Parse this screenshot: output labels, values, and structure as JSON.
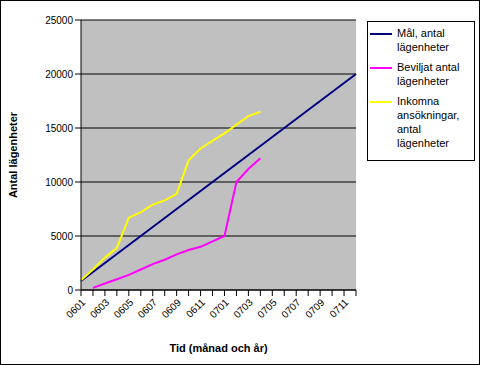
{
  "chart_data": {
    "type": "line",
    "x_label": "Tid (månad och år)",
    "y_label": "Antal lägenheter",
    "categories": [
      "0601",
      null,
      "0603",
      null,
      "0605",
      null,
      "0607",
      null,
      "0609",
      null,
      "0611",
      null,
      "0701",
      null,
      "0703",
      null,
      "0705",
      null,
      "0707",
      null,
      "0709",
      null,
      "0711",
      null
    ],
    "series": [
      {
        "name": "Mål, antal lägenheter",
        "color": "#000080",
        "values": [
          833,
          1667,
          2500,
          3333,
          4167,
          5000,
          5833,
          6667,
          7500,
          8333,
          9167,
          10000,
          10833,
          11667,
          12500,
          13333,
          14167,
          15000,
          15833,
          16667,
          17500,
          18333,
          19167,
          20000
        ]
      },
      {
        "name": "Beviljat antal lägenheter",
        "color": "#ff00ff",
        "values": [
          null,
          200,
          600,
          1000,
          1400,
          1900,
          2400,
          2800,
          3300,
          3700,
          4000,
          4500,
          5000,
          10000,
          11200,
          12200,
          null,
          null,
          null,
          null,
          null,
          null,
          null,
          null
        ]
      },
      {
        "name": "Inkomna ansökningar, antal lägenheter",
        "color": "#ffff00",
        "values": [
          900,
          1900,
          3000,
          3900,
          6700,
          7200,
          7900,
          8300,
          8900,
          12000,
          13100,
          13800,
          14500,
          15300,
          16100,
          16500,
          null,
          null,
          null,
          null,
          null,
          null,
          null,
          null
        ]
      }
    ],
    "ylim": [
      0,
      25000
    ],
    "yticks": [
      0,
      5000,
      10000,
      15000,
      20000,
      25000
    ],
    "grid": true,
    "legend": "right"
  }
}
